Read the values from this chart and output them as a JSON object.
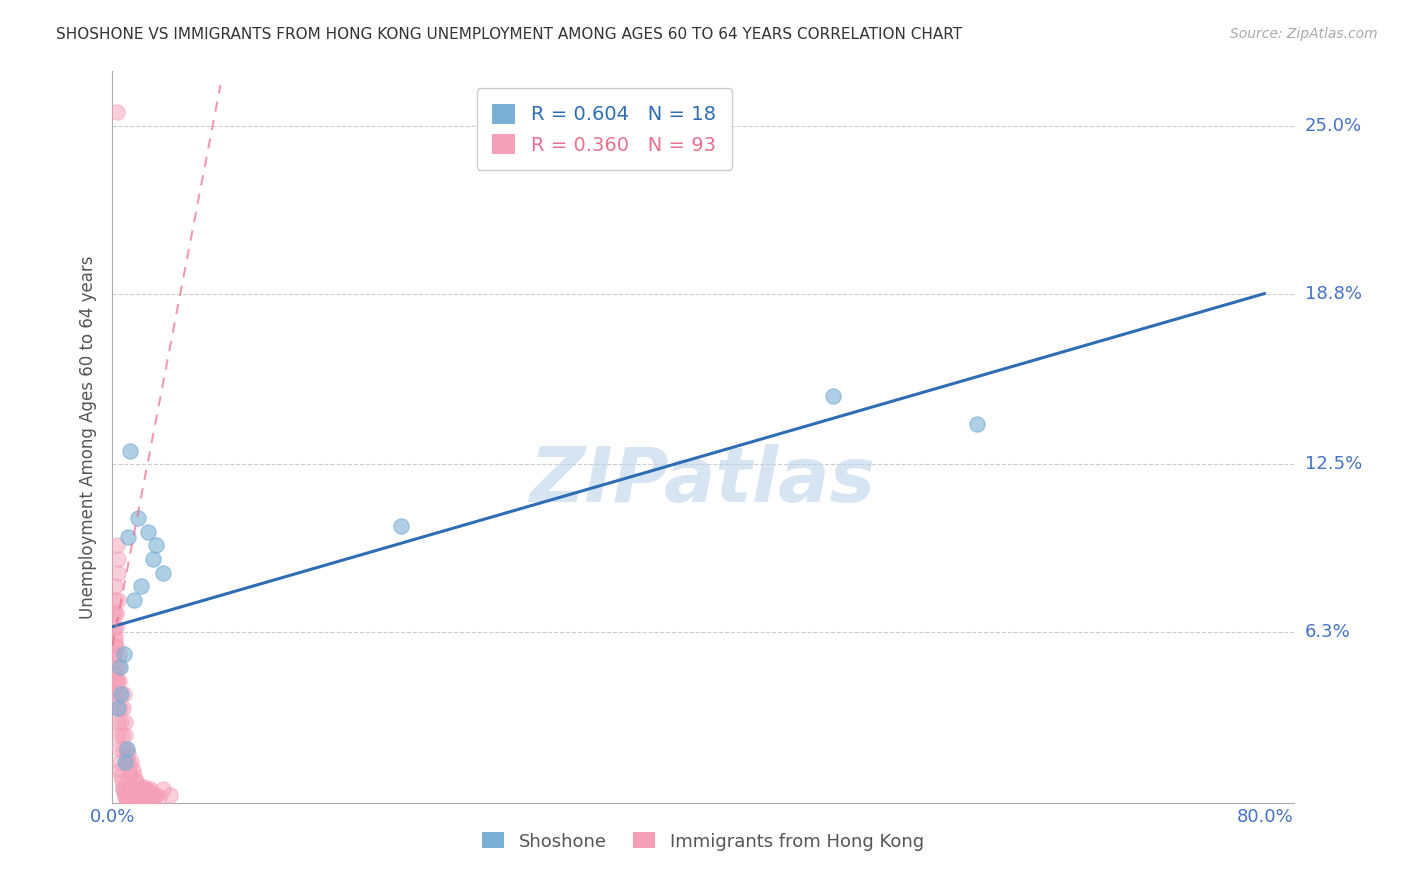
{
  "title": "SHOSHONE VS IMMIGRANTS FROM HONG KONG UNEMPLOYMENT AMONG AGES 60 TO 64 YEARS CORRELATION CHART",
  "source": "Source: ZipAtlas.com",
  "ylabel": "Unemployment Among Ages 60 to 64 years",
  "xlim": [
    0.0,
    82.0
  ],
  "ylim": [
    0.0,
    27.0
  ],
  "watermark": "ZIPatlas",
  "legend_blue_r": "0.604",
  "legend_blue_n": "18",
  "legend_pink_r": "0.360",
  "legend_pink_n": "93",
  "legend_label_blue": "Shoshone",
  "legend_label_pink": "Immigrants from Hong Kong",
  "ytick_positions": [
    0.0,
    6.3,
    12.5,
    18.8,
    25.0
  ],
  "ytick_labels": [
    "",
    "6.3%",
    "12.5%",
    "18.8%",
    "25.0%"
  ],
  "xtick_positions": [
    0,
    20,
    40,
    60,
    80
  ],
  "xtick_labels": [
    "0.0%",
    "",
    "",
    "",
    "80.0%"
  ],
  "blue_line_start_x": 0.0,
  "blue_line_start_y": 6.5,
  "blue_line_end_x": 80.0,
  "blue_line_end_y": 18.8,
  "pink_line_start_x": 0.0,
  "pink_line_start_y": 5.8,
  "pink_line_end_x": 7.5,
  "pink_line_end_y": 26.5,
  "shoshone_x": [
    0.4,
    0.5,
    0.6,
    0.8,
    1.0,
    1.2,
    1.5,
    1.8,
    2.0,
    2.5,
    2.8,
    3.0,
    3.5,
    20.0,
    50.0,
    60.0,
    0.9,
    1.1
  ],
  "shoshone_y": [
    3.5,
    5.0,
    4.0,
    5.5,
    2.0,
    13.0,
    7.5,
    10.5,
    8.0,
    10.0,
    9.0,
    9.5,
    8.5,
    10.2,
    15.0,
    14.0,
    1.5,
    9.8
  ],
  "hk_x": [
    0.3,
    0.05,
    0.1,
    0.08,
    0.12,
    0.15,
    0.18,
    0.2,
    0.22,
    0.25,
    0.28,
    0.3,
    0.32,
    0.35,
    0.38,
    0.4,
    0.42,
    0.45,
    0.48,
    0.5,
    0.55,
    0.6,
    0.65,
    0.7,
    0.75,
    0.8,
    0.85,
    0.9,
    0.95,
    1.0,
    1.05,
    1.1,
    1.15,
    1.2,
    1.3,
    1.4,
    1.5,
    1.6,
    1.7,
    1.8,
    1.9,
    2.0,
    2.1,
    2.2,
    2.3,
    2.4,
    2.5,
    2.6,
    2.7,
    2.8,
    2.9,
    3.0,
    3.2,
    3.5,
    4.0,
    0.05,
    0.07,
    0.1,
    0.12,
    0.15,
    0.18,
    0.2,
    0.22,
    0.25,
    0.28,
    0.3,
    0.35,
    0.4,
    0.45,
    0.5,
    0.55,
    0.6,
    0.65,
    0.7,
    0.75,
    0.8,
    0.85,
    0.9,
    0.95,
    1.0,
    1.1,
    1.2,
    1.3,
    1.4,
    1.5,
    1.6,
    1.7,
    1.8,
    1.9,
    2.0,
    2.2,
    2.4,
    2.6
  ],
  "hk_y": [
    25.5,
    7.0,
    6.5,
    5.5,
    4.5,
    8.0,
    7.5,
    6.0,
    7.0,
    5.0,
    4.5,
    4.0,
    9.5,
    9.0,
    8.5,
    7.5,
    5.5,
    5.0,
    4.5,
    4.0,
    3.5,
    3.0,
    2.5,
    2.0,
    3.5,
    4.0,
    3.0,
    2.5,
    2.0,
    1.5,
    1.8,
    1.5,
    1.2,
    1.0,
    1.5,
    1.2,
    1.0,
    0.8,
    0.7,
    0.5,
    0.4,
    0.3,
    0.5,
    0.6,
    0.5,
    0.4,
    0.3,
    0.5,
    0.4,
    0.3,
    0.2,
    0.3,
    0.2,
    0.5,
    0.3,
    4.2,
    3.8,
    5.5,
    4.8,
    6.2,
    5.8,
    7.0,
    6.5,
    5.8,
    4.5,
    3.5,
    3.0,
    2.5,
    2.0,
    1.5,
    1.2,
    1.0,
    0.8,
    0.6,
    0.5,
    0.4,
    0.3,
    0.2,
    0.15,
    0.1,
    0.8,
    0.6,
    0.5,
    0.4,
    0.3,
    0.25,
    0.2,
    0.15,
    0.1,
    0.08,
    0.06,
    0.05,
    0.04
  ],
  "blue_scatter_color": "#7BAFD4",
  "pink_scatter_color": "#F4A0B8",
  "blue_line_color": "#2E6DB4",
  "pink_line_color": "#E87090",
  "grid_color": "#CCCCCC",
  "axis_color": "#4472C4",
  "title_color": "#333333",
  "ylabel_color": "#555555"
}
